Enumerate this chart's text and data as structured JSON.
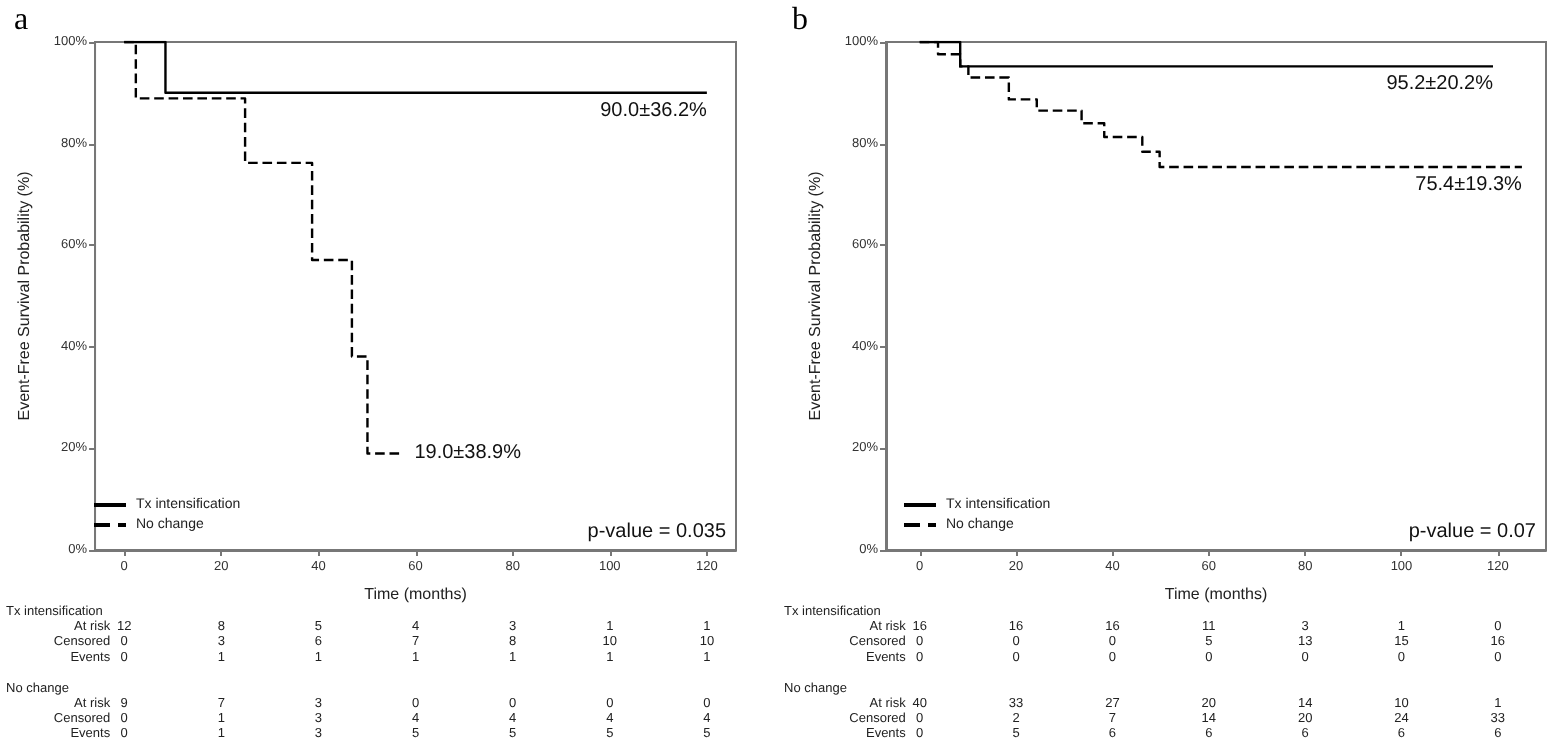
{
  "chart_data": [
    {
      "type": "step",
      "title": "a",
      "xlabel": "Time (months)",
      "ylabel": "Event-Free Survival Probability (%)",
      "xlim": [
        -6,
        126
      ],
      "xticks": [
        0,
        20,
        40,
        60,
        80,
        100,
        120
      ],
      "ylim": [
        0,
        100
      ],
      "yticks": [
        {
          "value": 0,
          "label": "0%"
        },
        {
          "value": 20,
          "label": "20%"
        },
        {
          "value": 40,
          "label": "40%"
        },
        {
          "value": 60,
          "label": "60%"
        },
        {
          "value": 80,
          "label": "80%"
        },
        {
          "value": 100,
          "label": "100%"
        }
      ],
      "grid": false,
      "legend": "bottom left",
      "marker": "none",
      "series": [
        {
          "name": "Tx intensification",
          "color": "#000000",
          "line_style": "solid",
          "x": [
            0,
            8.5,
            120
          ],
          "values": [
            100,
            90,
            90
          ]
        },
        {
          "name": "No change",
          "color": "#000000",
          "line_style": "dashed",
          "x": [
            0,
            2.4,
            24.9,
            38.7,
            46.9,
            50.1,
            57.3
          ],
          "values": [
            100,
            88.9,
            76.2,
            57.1,
            38.1,
            19.0,
            19.0
          ]
        }
      ],
      "annotations": [
        "p-value = 0.035",
        "90.0±36.2%",
        "19.0±38.9%",
        "Tx intensification",
        "At risk\t12\t8\t5\t4\t3\t1\t1",
        "Censored\t0\t3\t6\t7\t8\t10\t10",
        "Events\t0\t1\t1\t1\t1\t1\t1",
        "No change",
        "At risk\t9\t7\t3\t0\t0\t0\t0",
        "Censored\t0\t1\t3\t4\t4\t4\t4",
        "Events\t0\t1\t3\t5\t5\t5\t5"
      ]
    },
    {
      "type": "step",
      "title": "b",
      "xlabel": "Time (months)",
      "ylabel": "Event-Free Survival Probability (%)",
      "xlim": [
        -7,
        130
      ],
      "xticks": [
        0,
        20,
        40,
        60,
        80,
        100,
        120
      ],
      "ylim": [
        0,
        100
      ],
      "yticks": [
        {
          "value": 0,
          "label": "0%"
        },
        {
          "value": 20,
          "label": "20%"
        },
        {
          "value": 40,
          "label": "40%"
        },
        {
          "value": 60,
          "label": "60%"
        },
        {
          "value": 80,
          "label": "80%"
        },
        {
          "value": 100,
          "label": "100%"
        }
      ],
      "grid": false,
      "legend": "bottom left",
      "marker": "none",
      "series": [
        {
          "name": "Tx intensification",
          "color": "#000000",
          "line_style": "solid",
          "x": [
            0,
            8.4,
            119
          ],
          "values": [
            100,
            95.2,
            95.2
          ]
        },
        {
          "name": "No change",
          "color": "#000000",
          "line_style": "dashed",
          "x": [
            0,
            3.8,
            8.4,
            10.1,
            18.5,
            24.3,
            33.6,
            38.3,
            46.2,
            49.8,
            125
          ],
          "values": [
            100,
            97.6,
            95.2,
            93.0,
            88.7,
            86.5,
            84.0,
            81.3,
            78.4,
            75.4,
            75.4
          ]
        }
      ],
      "annotations": [
        "p-value = 0.07",
        "95.2±20.2%",
        "75.4±19.3%",
        "Tx intensification",
        "At risk\t16\t16\t16\t11\t3\t1\t0",
        "Censored\t0\t0\t0\t5\t13\t15\t16",
        "Events\t0\t0\t0\t0\t0\t0\t0",
        "No change",
        "At risk\t40\t33\t27\t20\t14\t10\t1",
        "Censored\t0\t2\t7\t14\t20\t24\t33",
        "Events\t0\t5\t6\t6\t6\t6\t6"
      ]
    }
  ]
}
